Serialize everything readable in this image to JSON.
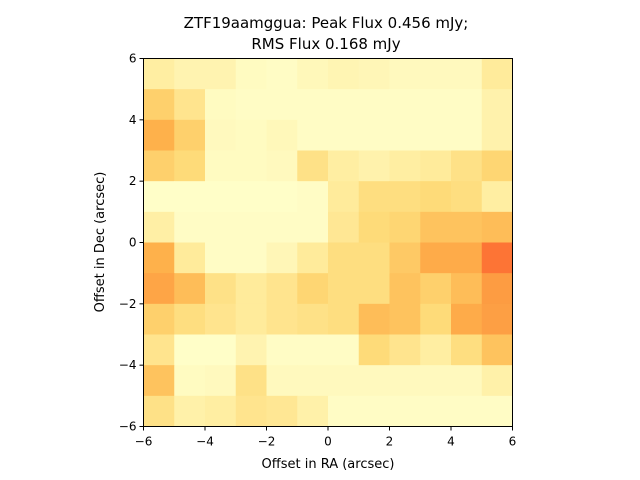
{
  "chart_data": {
    "type": "heatmap",
    "title_line1": "ZTF19aamggua: Peak Flux 0.456 mJy;",
    "title_line2": "RMS Flux 0.168 mJy",
    "xlabel": "Offset in RA (arcsec)",
    "ylabel": "Offset in Dec (arcsec)",
    "xlim": [
      -6,
      6
    ],
    "ylim": [
      -6,
      6
    ],
    "xticks": [
      "−6",
      "−4",
      "−2",
      "0",
      "2",
      "4",
      "6"
    ],
    "yticks": [
      "−6",
      "−4",
      "−2",
      "0",
      "2",
      "4",
      "6"
    ],
    "colormap": "YlOrRd",
    "grid": false,
    "rows_top_to_bottom": [
      [
        0.12,
        0.08,
        0.08,
        0.03,
        0.02,
        0.05,
        0.07,
        0.06,
        0.04,
        0.04,
        0.04,
        0.14
      ],
      [
        0.28,
        0.18,
        0.03,
        0.02,
        0.02,
        0.02,
        0.02,
        0.02,
        0.02,
        0.02,
        0.02,
        0.09
      ],
      [
        0.38,
        0.28,
        0.04,
        0.03,
        0.05,
        0.02,
        0.02,
        0.02,
        0.02,
        0.02,
        0.02,
        0.09
      ],
      [
        0.28,
        0.24,
        0.03,
        0.03,
        0.04,
        0.2,
        0.12,
        0.09,
        0.12,
        0.14,
        0.2,
        0.26
      ],
      [
        0.01,
        0.01,
        0.01,
        0.01,
        0.01,
        0.02,
        0.14,
        0.22,
        0.22,
        0.24,
        0.22,
        0.12
      ],
      [
        0.11,
        0.02,
        0.02,
        0.02,
        0.02,
        0.02,
        0.16,
        0.24,
        0.26,
        0.32,
        0.32,
        0.34
      ],
      [
        0.38,
        0.14,
        0.02,
        0.02,
        0.06,
        0.14,
        0.22,
        0.22,
        0.3,
        0.4,
        0.4,
        0.55
      ],
      [
        0.42,
        0.34,
        0.2,
        0.14,
        0.18,
        0.26,
        0.22,
        0.22,
        0.32,
        0.28,
        0.34,
        0.45
      ],
      [
        0.28,
        0.22,
        0.18,
        0.14,
        0.18,
        0.2,
        0.22,
        0.34,
        0.32,
        0.24,
        0.4,
        0.44
      ],
      [
        0.18,
        0.01,
        0.01,
        0.08,
        0.02,
        0.02,
        0.02,
        0.24,
        0.18,
        0.12,
        0.22,
        0.32
      ],
      [
        0.32,
        0.03,
        0.04,
        0.2,
        0.04,
        0.04,
        0.04,
        0.04,
        0.04,
        0.04,
        0.04,
        0.1
      ],
      [
        0.2,
        0.1,
        0.12,
        0.18,
        0.16,
        0.1,
        0.02,
        0.02,
        0.02,
        0.02,
        0.02,
        0.02
      ]
    ]
  }
}
